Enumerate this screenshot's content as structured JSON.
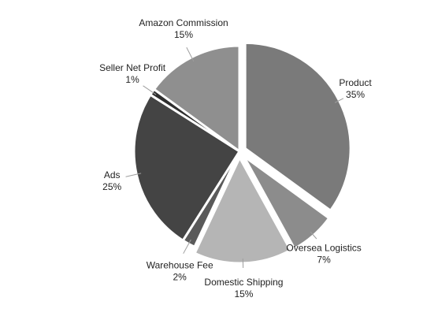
{
  "chart_data": {
    "type": "pie",
    "slices": [
      {
        "label": "Product",
        "value": 35,
        "value_text": "35%",
        "color": "#7a7a7a"
      },
      {
        "label": "Oversea Logistics",
        "value": 7,
        "value_text": "7%",
        "color": "#8c8c8c"
      },
      {
        "label": "Domestic Shipping",
        "value": 15,
        "value_text": "15%",
        "color": "#b5b5b5"
      },
      {
        "label": "Warehouse Fee",
        "value": 2,
        "value_text": "2%",
        "color": "#5a5a5a"
      },
      {
        "label": "Ads",
        "value": 25,
        "value_text": "25%",
        "color": "#444444"
      },
      {
        "label": "Seller Net Profit",
        "value": 1,
        "value_text": "1%",
        "color": "#2e2e2e"
      },
      {
        "label": "Amazon Commission",
        "value": 15,
        "value_text": "15%",
        "color": "#8f8f8f"
      }
    ],
    "exploded": [
      "Product",
      "Oversea Logistics",
      "Domestic Shipping"
    ],
    "legend": "none",
    "labels": "outside with leader lines"
  }
}
